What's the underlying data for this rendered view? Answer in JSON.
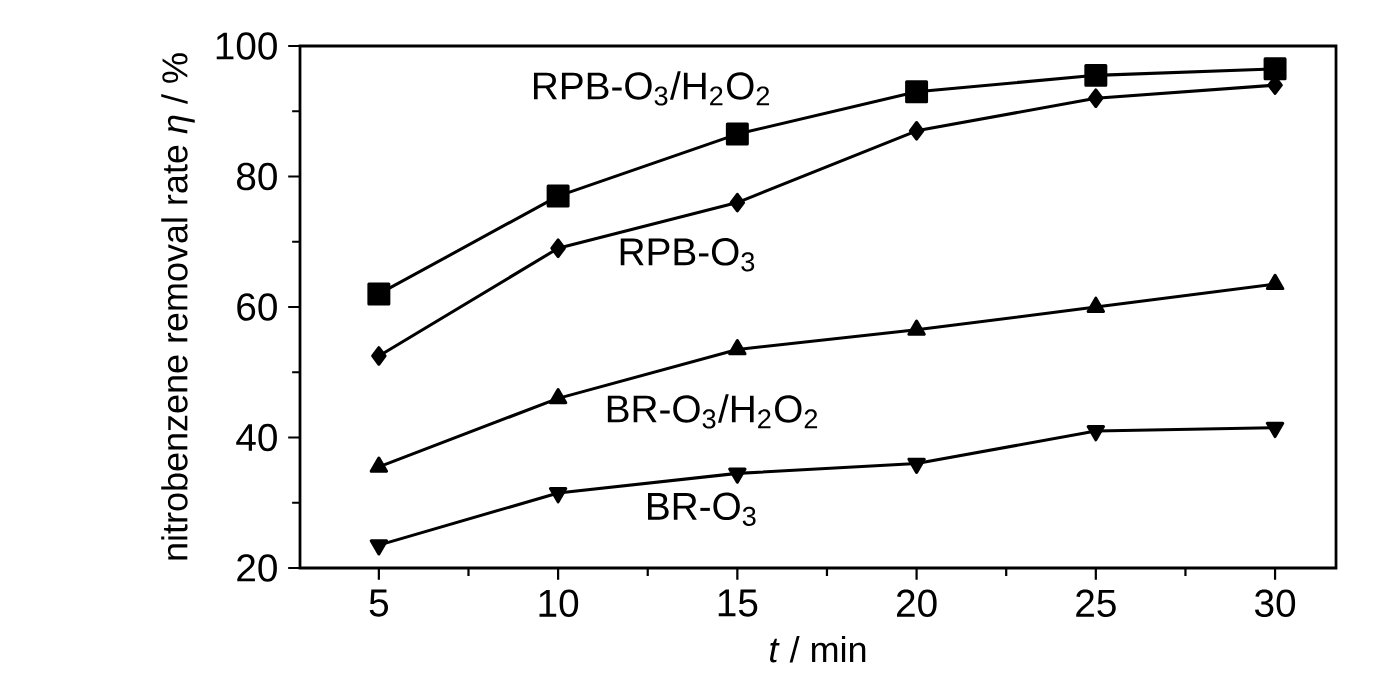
{
  "chart_data": {
    "type": "line",
    "xlabel": "*t* / min",
    "ylabel": "nitrobenzene removal rate *η* / %",
    "x": [
      5,
      10,
      15,
      20,
      25,
      30
    ],
    "xlim": [
      2.8,
      31.7
    ],
    "xticks": [
      5,
      10,
      15,
      20,
      25,
      30
    ],
    "ylim": [
      20,
      100
    ],
    "yticks": [
      20,
      40,
      60,
      80,
      100
    ],
    "grid": false,
    "line_style": "solid",
    "series": [
      {
        "name": "RPB-O$_{3}$/H$_{2}$O$_{2}$",
        "color": "#000000",
        "marker": "square",
        "values": [
          62,
          77,
          86.5,
          93,
          95.5,
          96.5
        ]
      },
      {
        "name": "RPB-O$_{3}$",
        "color": "#000000",
        "marker": "diamond",
        "values": [
          52.5,
          69,
          76,
          87,
          92,
          94
        ]
      },
      {
        "name": "BR-O$_{3}$/H$_{2}$O$_{2}$",
        "color": "#000000",
        "marker": "triangle",
        "values": [
          35.5,
          46,
          53.5,
          56.5,
          60,
          63.5
        ]
      },
      {
        "name": "BR-O$_{3}$",
        "color": "#000000",
        "marker": "triangle down",
        "values": [
          23.5,
          31.5,
          34.5,
          36,
          41,
          41.5
        ]
      }
    ]
  }
}
